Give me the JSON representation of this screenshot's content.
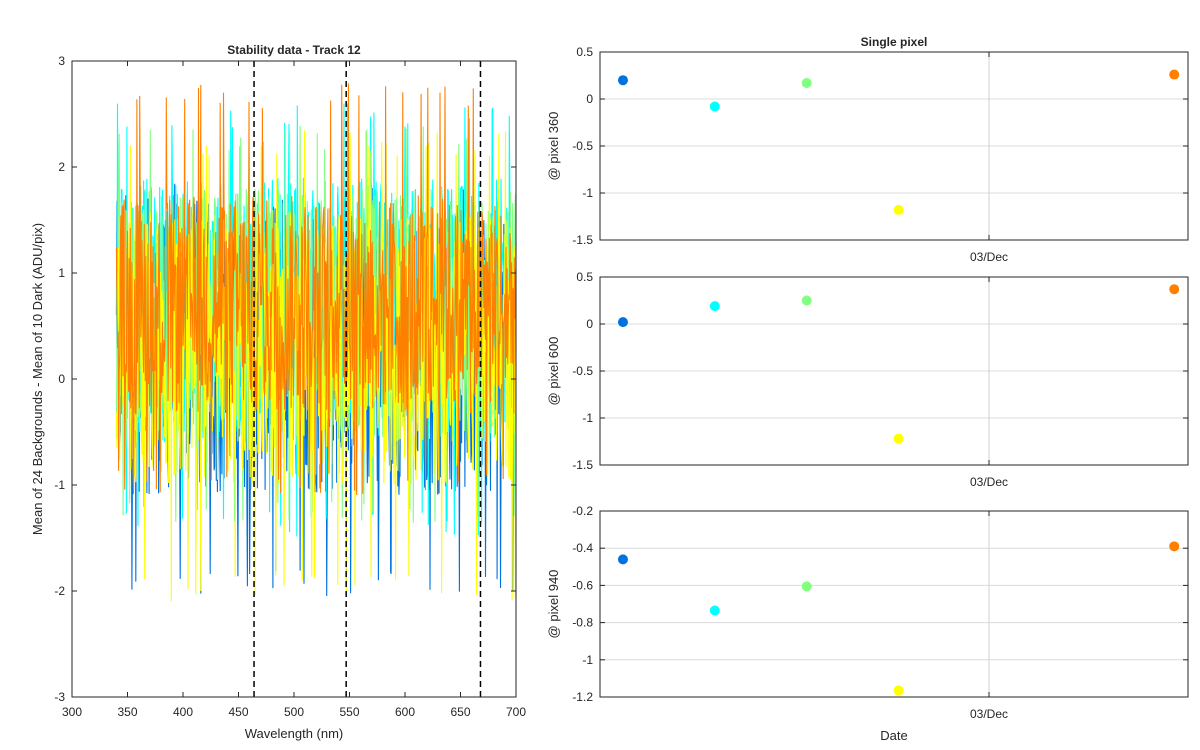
{
  "chart_data": [
    {
      "type": "line",
      "title": "Stability data - Track 12",
      "xlabel": "Wavelength (nm)",
      "ylabel": "Mean of 24 Backgrounds - Mean of 10 Dark (ADU/pix)",
      "xlim": [
        300,
        700
      ],
      "ylim": [
        -3,
        3
      ],
      "xticks": [
        300,
        350,
        400,
        450,
        500,
        550,
        600,
        650,
        700
      ],
      "yticks": [
        -3,
        -2,
        -1,
        0,
        1,
        2,
        3
      ],
      "x_range": [
        340,
        700
      ],
      "grid": false,
      "vlines": [
        464,
        547,
        668
      ],
      "series": [
        {
          "color": "#0072e0",
          "min": -2.05,
          "max": 1.85,
          "typical": [
            -1.1,
            1.5
          ]
        },
        {
          "color": "#00ffff",
          "min": -1.5,
          "max": 2.6,
          "typical": [
            -0.6,
            1.9
          ]
        },
        {
          "color": "#80ff80",
          "min": -1.4,
          "max": 2.4,
          "typical": [
            -0.6,
            1.8
          ]
        },
        {
          "color": "#ffff00",
          "min": -2.1,
          "max": 2.35,
          "typical": [
            -1.0,
            1.6
          ]
        },
        {
          "color": "#ff8000",
          "min": -1.1,
          "max": 2.8,
          "typical": [
            -0.35,
            1.75
          ]
        }
      ]
    },
    {
      "type": "scatter",
      "title": "Single pixel",
      "ylabel": "@ pixel 360",
      "xlabel": "",
      "xticklabels": [
        "03/Dec"
      ],
      "ylim": [
        -1.5,
        0.5
      ],
      "yticks": [
        -1.5,
        -1,
        -0.5,
        0,
        0.5
      ],
      "grid": true,
      "points": [
        {
          "x": 1,
          "y": 0.2,
          "color": "#0072e0"
        },
        {
          "x": 2,
          "y": -0.08,
          "color": "#00ffff"
        },
        {
          "x": 3,
          "y": 0.17,
          "color": "#80ff80"
        },
        {
          "x": 4,
          "y": -1.18,
          "color": "#ffff00"
        },
        {
          "x": 7,
          "y": 0.26,
          "color": "#ff8000"
        }
      ]
    },
    {
      "type": "scatter",
      "title": "",
      "ylabel": "@ pixel 600",
      "xlabel": "",
      "xticklabels": [
        "03/Dec"
      ],
      "ylim": [
        -1.5,
        0.5
      ],
      "yticks": [
        -1.5,
        -1,
        -0.5,
        0,
        0.5
      ],
      "grid": true,
      "points": [
        {
          "x": 1,
          "y": 0.02,
          "color": "#0072e0"
        },
        {
          "x": 2,
          "y": 0.19,
          "color": "#00ffff"
        },
        {
          "x": 3,
          "y": 0.25,
          "color": "#80ff80"
        },
        {
          "x": 4,
          "y": -1.22,
          "color": "#ffff00"
        },
        {
          "x": 7,
          "y": 0.37,
          "color": "#ff8000"
        }
      ]
    },
    {
      "type": "scatter",
      "title": "",
      "ylabel": "@ pixel 940",
      "xlabel": "Date",
      "xticklabels": [
        "03/Dec"
      ],
      "ylim": [
        -1.2,
        -0.2
      ],
      "yticks": [
        -1.2,
        -1,
        -0.8,
        -0.6,
        -0.4,
        -0.2
      ],
      "grid": true,
      "points": [
        {
          "x": 1,
          "y": -0.46,
          "color": "#0072e0"
        },
        {
          "x": 2,
          "y": -0.735,
          "color": "#00ffff"
        },
        {
          "x": 3,
          "y": -0.605,
          "color": "#80ff80"
        },
        {
          "x": 4,
          "y": -1.165,
          "color": "#ffff00"
        },
        {
          "x": 7,
          "y": -0.39,
          "color": "#ff8000"
        }
      ]
    }
  ]
}
